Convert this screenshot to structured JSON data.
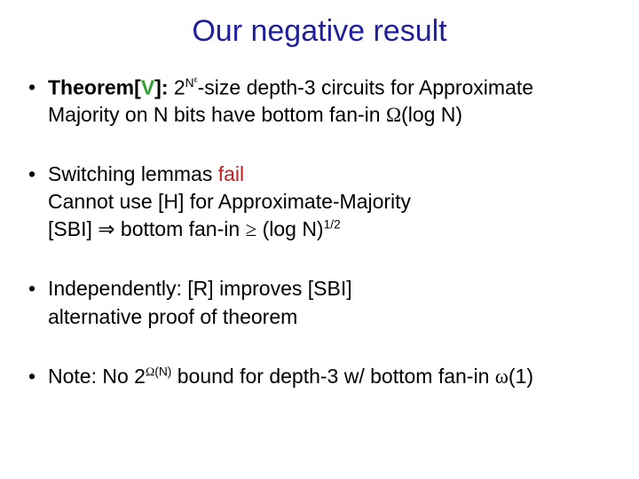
{
  "title": "Our negative result",
  "bullet1": {
    "theorem_label": "Theorem",
    "bracket_open": "[",
    "bracket_inner": "V",
    "bracket_close": "]:",
    "line1_part1": " 2",
    "line1_exp": "N",
    "line1_eps": "ε",
    "line1_part2": "-size depth-3 circuits for Approximate",
    "line2_part1": "Majority on N bits have bottom fan-in ",
    "line2_omega": "Ω",
    "line2_part2": "(log N)"
  },
  "bullet2": {
    "line1_a": "Switching lemmas ",
    "line1_fail": "fail",
    "line2": "Cannot use [H] for Approximate-Majority",
    "line3_a": "[SBI] ",
    "line3_imp": "⇒",
    "line3_b": " bottom fan-in ",
    "line3_ge": "≥",
    "line3_c": " (log N)",
    "line3_exp": "1/2"
  },
  "bullet3": {
    "line1": "Independently: [R] improves [SBI]",
    "line2": "alternative proof of theorem"
  },
  "bullet4": {
    "part1": "Note: No 2",
    "exp_omega": "Ω",
    "exp_rest": "(N)",
    "part2": " bound for depth-3 w/ bottom fan-in ",
    "omega2": "ω",
    "part3": "(1)"
  },
  "colors": {
    "title": "#1f1f9c",
    "fail": "#c02020",
    "green": "#2fa32f",
    "text": "#000000",
    "background": "#ffffff"
  }
}
